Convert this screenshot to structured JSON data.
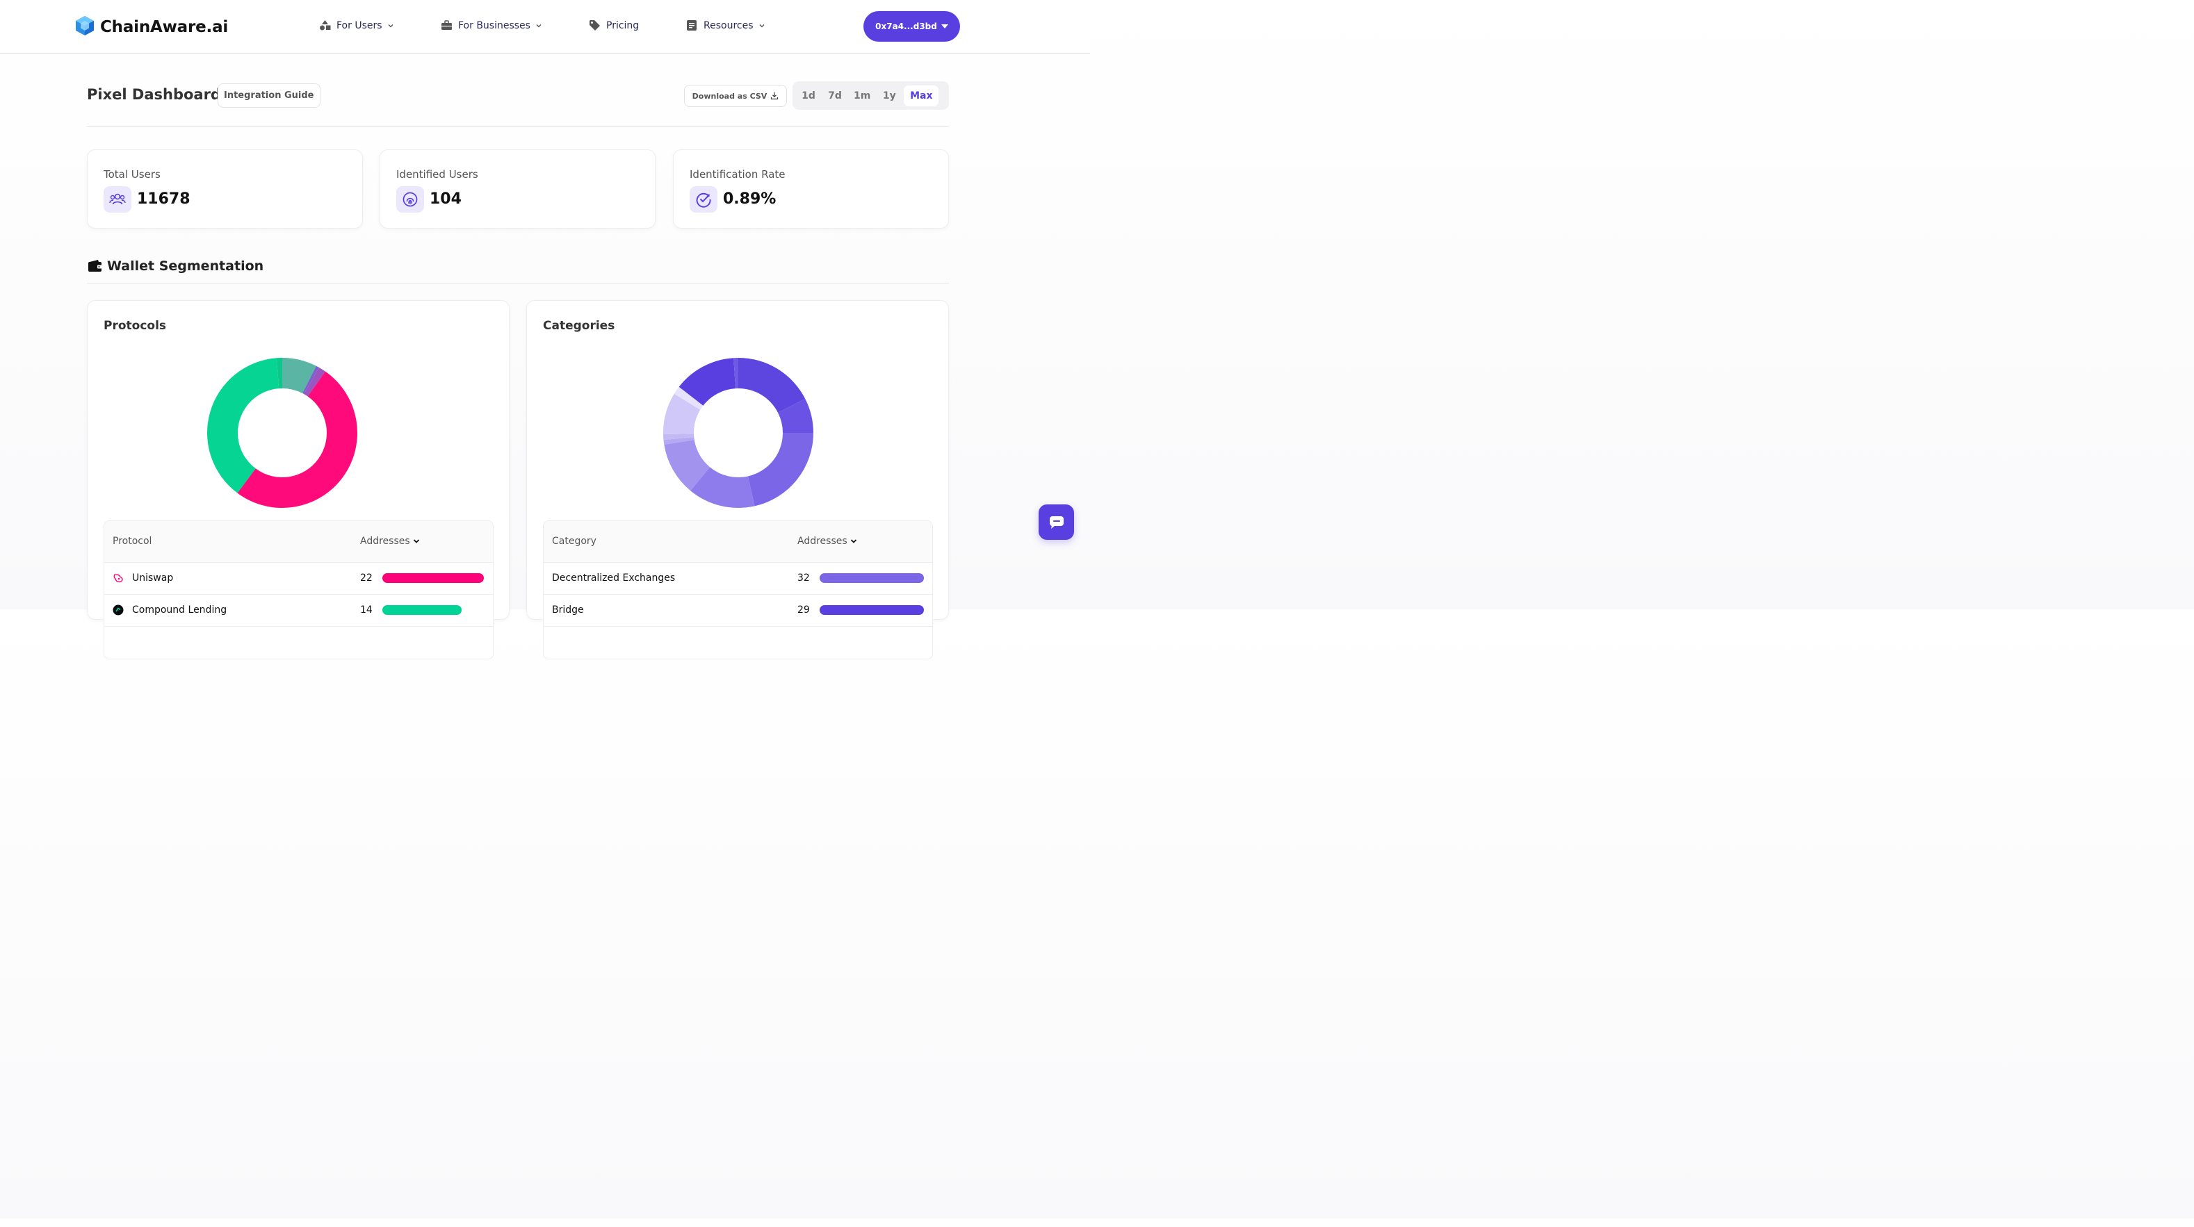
{
  "header": {
    "brand": "ChainAware.ai",
    "nav": [
      {
        "label": "For Users",
        "icon": "shapes-icon",
        "dropdown": true
      },
      {
        "label": "For Businesses",
        "icon": "briefcase-icon",
        "dropdown": true
      },
      {
        "label": "Pricing",
        "icon": "tag-icon",
        "dropdown": false
      },
      {
        "label": "Resources",
        "icon": "document-icon",
        "dropdown": true
      }
    ],
    "wallet": "0x7a4...d3bd"
  },
  "page": {
    "title": "Pixel Dashboard",
    "guide_label": "Integration Guide",
    "csv_label": "Download as CSV",
    "ranges": [
      "1d",
      "7d",
      "1m",
      "1y",
      "Max"
    ],
    "active_range": "Max"
  },
  "stats": [
    {
      "label": "Total Users",
      "value": "11678",
      "icon": "users-icon"
    },
    {
      "label": "Identified Users",
      "value": "104",
      "icon": "fingerprint-icon"
    },
    {
      "label": "Identification Rate",
      "value": "0.89%",
      "icon": "check-circle-icon"
    }
  ],
  "section": {
    "title": "Wallet Segmentation",
    "icon": "wallet-icon"
  },
  "colors": {
    "accent": "#5a3fe0",
    "uniswap": "#ff007a",
    "compound": "#00d395"
  },
  "protocols": {
    "title": "Protocols",
    "col_name": "Protocol",
    "col_value": "Addresses",
    "rows": [
      {
        "name": "Uniswap",
        "value": "22",
        "fill": 1.0,
        "color": "#ff007a"
      },
      {
        "name": "Compound Lending",
        "value": "14",
        "fill": 0.78,
        "color": "#00d395"
      }
    ]
  },
  "categories": {
    "title": "Categories",
    "col_name": "Category",
    "col_value": "Addresses",
    "rows": [
      {
        "name": "Decentralized Exchanges",
        "value": "32",
        "fill": 1.0,
        "color": "#7b66e8"
      },
      {
        "name": "Bridge",
        "value": "29",
        "fill": 1.0,
        "color": "#5a3fe0"
      }
    ]
  },
  "chart_data": [
    {
      "type": "pie",
      "title": "Protocols",
      "slices": [
        {
          "value": 7.5,
          "color": "#5bb5a5"
        },
        {
          "value": 0.6,
          "color": "#7a5fd0"
        },
        {
          "value": 1.6,
          "color": "#9b55c0"
        },
        {
          "value": 50.5,
          "color": "#ff0a7a"
        },
        {
          "value": 38.6,
          "color": "#06d492"
        },
        {
          "value": 1.2,
          "color": "#0cc98a"
        }
      ]
    },
    {
      "type": "pie",
      "title": "Categories",
      "slices": [
        {
          "value": 17.5,
          "color": "#5d45e0"
        },
        {
          "value": 7.5,
          "color": "#6a53e4"
        },
        {
          "value": 21.5,
          "color": "#7b66e8"
        },
        {
          "value": 14.5,
          "color": "#8e7cec"
        },
        {
          "value": 11.5,
          "color": "#a293ef"
        },
        {
          "value": 1.0,
          "color": "#b4a9f2"
        },
        {
          "value": 1.2,
          "color": "#c2b9f5"
        },
        {
          "value": 9.0,
          "color": "#cfc8f8"
        },
        {
          "value": 1.8,
          "color": "#e7e2fd"
        },
        {
          "value": 13.5,
          "color": "#5a3fe0"
        },
        {
          "value": 1.0,
          "color": "#6f5ae6"
        }
      ]
    }
  ]
}
